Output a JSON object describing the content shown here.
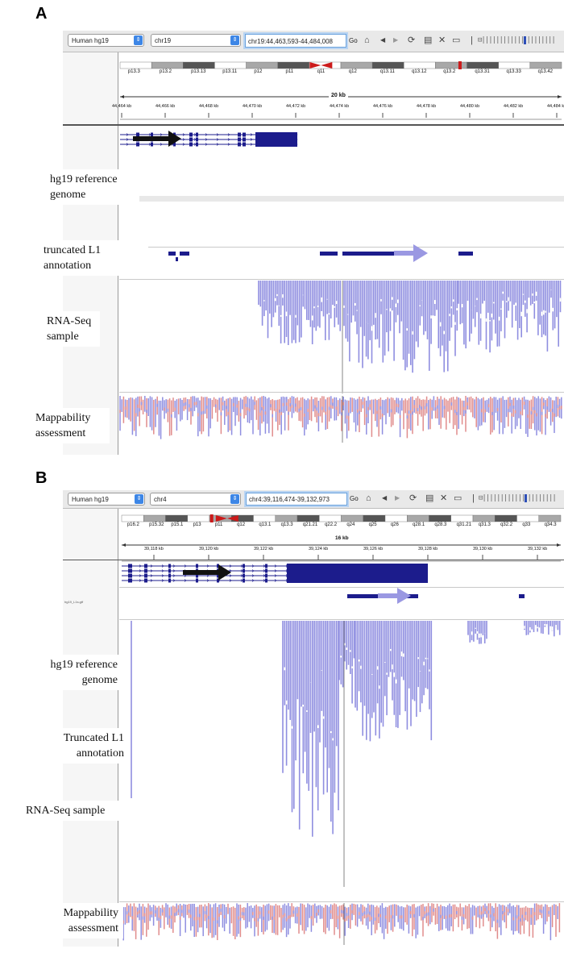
{
  "panelA": {
    "letter": "A",
    "genome": "Human hg19",
    "chromosome": "chr19",
    "locus": "chr19:44,463,593-44,484,008",
    "go_label": "Go",
    "span": "20 kb",
    "bands": [
      "p13.3",
      "p13.2",
      "p13.13",
      "p13.11",
      "p12",
      "p11",
      "q11",
      "q12",
      "q13.11",
      "q13.12",
      "q13.2",
      "q13.31",
      "q13.33",
      "q13.42"
    ],
    "ticks": [
      "44,464 kb",
      "44,466 kb",
      "44,468 kb",
      "44,470 kb",
      "44,472 kb",
      "44,474 kb",
      "44,476 kb",
      "44,478 kb",
      "44,480 kb",
      "44,482 kb",
      "44,484 kb"
    ],
    "labels": {
      "reference": "hg19 reference genome",
      "l1": "truncated L1 annotation",
      "rnaseq": "RNA-Seq sample",
      "mappability": "Mappability assessment"
    }
  },
  "panelB": {
    "letter": "B",
    "genome": "Human hg19",
    "chromosome": "chr4",
    "locus": "chr4:39,116,474-39,132,973",
    "go_label": "Go",
    "span": "16 kb",
    "bands": [
      "p16.2",
      "p15.32",
      "p15.1",
      "p13",
      "p11",
      "q12",
      "q13.1",
      "q13.3",
      "q21.21",
      "q22.2",
      "q24",
      "q25",
      "q26",
      "q28.1",
      "q28.3",
      "q31.21",
      "q31.3",
      "q32.2",
      "q33",
      "q34.3"
    ],
    "ticks": [
      "39,118 kb",
      "39,120 kb",
      "39,122 kb",
      "39,124 kb",
      "39,126 kb",
      "39,128 kb",
      "39,130 kb",
      "39,132 kb"
    ],
    "track_name": "hg19_L1s.gtf",
    "labels": {
      "reference": "hg19 reference genome",
      "l1": "Truncated L1 annotation",
      "rnaseq": "RNA-Seq sample",
      "mappability": "Mappability assessment"
    }
  },
  "colors": {
    "gene": "#1c1c8c",
    "read": "#8f8ee0",
    "read_pink": "#e08c8c",
    "arrow_black": "#111111",
    "arrow_lavender": "#9a98e2",
    "centromere": "#cc1a1a"
  }
}
